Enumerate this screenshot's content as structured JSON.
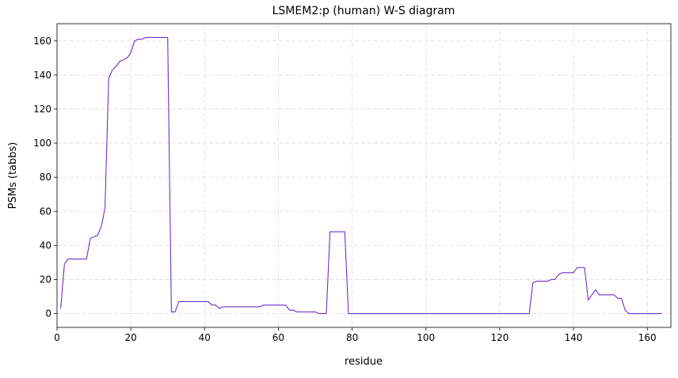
{
  "chart_data": {
    "type": "line",
    "title": "LSMEM2:p (human) W-S diagram",
    "xlabel": "residue",
    "ylabel": "PSMs (tabbs)",
    "x": [
      1,
      2,
      3,
      4,
      5,
      6,
      7,
      8,
      9,
      10,
      11,
      12,
      13,
      14,
      15,
      16,
      17,
      18,
      19,
      20,
      21,
      22,
      23,
      24,
      25,
      26,
      27,
      28,
      29,
      30,
      31,
      32,
      33,
      34,
      35,
      36,
      37,
      38,
      39,
      40,
      41,
      42,
      43,
      44,
      45,
      46,
      47,
      48,
      49,
      50,
      51,
      52,
      53,
      54,
      55,
      56,
      57,
      58,
      59,
      60,
      61,
      62,
      63,
      64,
      65,
      66,
      67,
      68,
      69,
      70,
      71,
      72,
      73,
      74,
      75,
      76,
      77,
      78,
      79,
      80,
      81,
      82,
      83,
      84,
      85,
      86,
      87,
      88,
      89,
      90,
      91,
      92,
      93,
      94,
      95,
      96,
      97,
      98,
      99,
      100,
      101,
      102,
      103,
      104,
      105,
      106,
      107,
      108,
      109,
      110,
      111,
      112,
      113,
      114,
      115,
      116,
      117,
      118,
      119,
      120,
      121,
      122,
      123,
      124,
      125,
      126,
      127,
      128,
      129,
      130,
      131,
      132,
      133,
      134,
      135,
      136,
      137,
      138,
      139,
      140,
      141,
      142,
      143,
      144,
      145,
      146,
      147,
      148,
      149,
      150,
      151,
      152,
      153,
      154,
      155,
      156,
      157,
      158,
      159,
      160,
      161,
      162,
      163,
      164
    ],
    "series": [
      {
        "name": "PSMs",
        "color": "#6a30d0",
        "values": [
          3,
          29,
          32,
          32,
          32,
          32,
          32,
          32,
          44,
          45,
          46,
          51,
          62,
          138,
          143,
          145,
          148,
          149,
          150,
          153,
          160,
          161,
          161,
          162,
          162,
          162,
          162,
          162,
          162,
          162,
          1,
          1,
          7,
          7,
          7,
          7,
          7,
          7,
          7,
          7,
          7,
          5,
          5,
          3,
          4,
          4,
          4,
          4,
          4,
          4,
          4,
          4,
          4,
          4,
          4,
          5,
          5,
          5,
          5,
          5,
          5,
          5,
          2,
          2,
          1,
          1,
          1,
          1,
          1,
          1,
          0,
          0,
          0,
          48,
          48,
          48,
          48,
          48,
          0,
          0,
          0,
          0,
          0,
          0,
          0,
          0,
          0,
          0,
          0,
          0,
          0,
          0,
          0,
          0,
          0,
          0,
          0,
          0,
          0,
          0,
          0,
          0,
          0,
          0,
          0,
          0,
          0,
          0,
          0,
          0,
          0,
          0,
          0,
          0,
          0,
          0,
          0,
          0,
          0,
          0,
          0,
          0,
          0,
          0,
          0,
          0,
          0,
          0,
          18,
          19,
          19,
          19,
          19,
          20,
          20,
          23,
          24,
          24,
          24,
          24,
          27,
          27,
          27,
          8,
          11,
          14,
          11,
          11,
          11,
          11,
          11,
          9,
          9,
          2,
          0,
          0,
          0,
          0,
          0,
          0,
          0,
          0,
          0,
          0
        ]
      }
    ],
    "xlim": [
      0,
      166.4
    ],
    "ylim": [
      -8.1,
      170.1
    ],
    "xticks": [
      0,
      20,
      40,
      60,
      80,
      100,
      120,
      140,
      160
    ],
    "yticks": [
      0,
      20,
      40,
      60,
      80,
      100,
      120,
      140,
      160
    ],
    "grid": true
  }
}
